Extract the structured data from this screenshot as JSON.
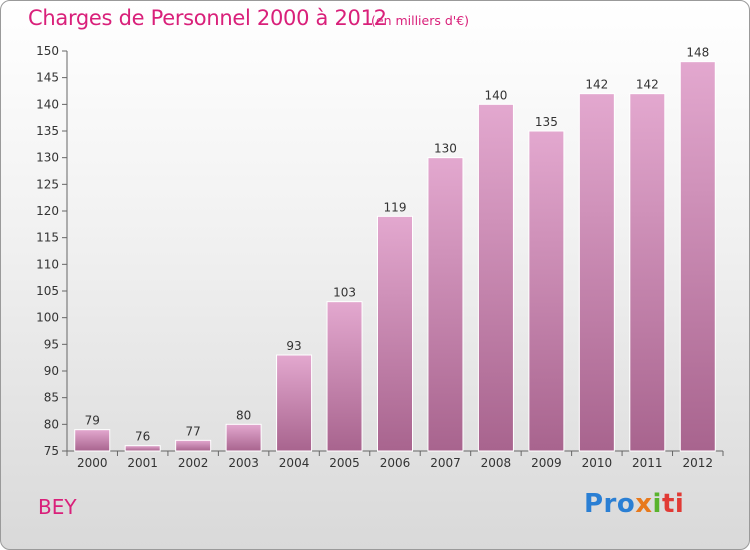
{
  "header": {
    "title": "Charges de Personnel 2000 à 2012",
    "subtitle": "(en milliers d'€)"
  },
  "footer": {
    "place": "BEY",
    "logo_parts": [
      "Pro",
      "x",
      "i",
      "ti"
    ]
  },
  "colors": {
    "accent": "#d9207a",
    "bar_top": "#e3a8cf",
    "bar_bottom": "#a8648e",
    "axis": "#666666"
  },
  "chart_data": {
    "type": "bar",
    "categories": [
      "2000",
      "2001",
      "2002",
      "2003",
      "2004",
      "2005",
      "2006",
      "2007",
      "2008",
      "2009",
      "2010",
      "2011",
      "2012"
    ],
    "values": [
      79,
      76,
      77,
      80,
      93,
      103,
      119,
      130,
      140,
      135,
      142,
      142,
      148
    ],
    "ylim": [
      75,
      150
    ],
    "yticks": [
      75,
      80,
      85,
      90,
      95,
      100,
      105,
      110,
      115,
      120,
      125,
      130,
      135,
      140,
      145,
      150
    ],
    "grid": false,
    "legend": "none",
    "data_labels": true
  }
}
